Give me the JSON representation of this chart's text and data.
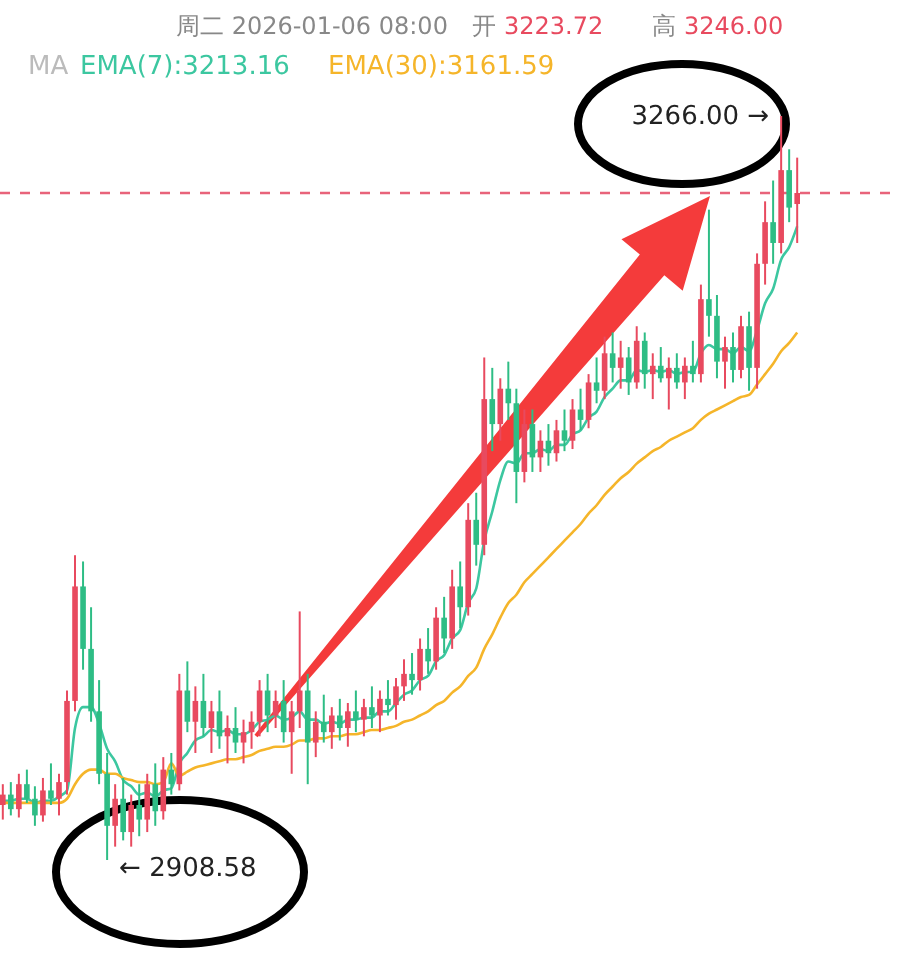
{
  "chart_data": {
    "type": "candlestick",
    "title": "周二 2026-01-06 08:00",
    "annotations": [
      "开 3223.72",
      "高 3246.00",
      "MA",
      "3266.00 →",
      "← 2908.58"
    ],
    "legend": "top left",
    "categories": [
      null,
      null,
      null,
      null,
      null,
      null,
      null,
      null,
      null,
      null,
      null,
      null,
      null,
      null,
      null,
      null,
      null,
      null,
      null,
      null,
      null,
      null,
      null,
      null,
      null,
      null,
      null,
      null,
      null,
      null,
      null,
      null,
      null,
      null,
      null,
      null,
      null,
      null,
      null,
      null,
      null,
      null,
      null,
      null,
      null,
      null,
      null,
      null,
      null,
      null,
      null,
      null,
      null,
      null,
      null,
      null,
      null,
      null,
      null,
      null,
      null,
      null,
      null,
      null,
      null,
      null,
      null,
      null,
      null,
      null,
      null,
      null,
      null,
      null,
      null,
      null,
      null,
      null,
      null,
      null,
      null,
      null,
      null,
      null,
      null,
      null,
      null,
      null,
      null,
      null,
      null,
      null,
      null,
      null,
      null,
      null,
      null,
      null,
      null,
      null
    ],
    "ohlc": [
      [
        2935,
        2945,
        2928,
        2940
      ],
      [
        2940,
        2946,
        2930,
        2933
      ],
      [
        2933,
        2950,
        2929,
        2945
      ],
      [
        2945,
        2952,
        2936,
        2938
      ],
      [
        2938,
        2944,
        2925,
        2930
      ],
      [
        2930,
        2948,
        2927,
        2942
      ],
      [
        2942,
        2955,
        2935,
        2938
      ],
      [
        2938,
        2950,
        2930,
        2946
      ],
      [
        2946,
        2990,
        2940,
        2985
      ],
      [
        2985,
        3055,
        2980,
        3040
      ],
      [
        3040,
        3052,
        3000,
        3010
      ],
      [
        3010,
        3030,
        2975,
        2980
      ],
      [
        2980,
        2995,
        2945,
        2950
      ],
      [
        2950,
        2960,
        2908.58,
        2925
      ],
      [
        2925,
        2945,
        2915,
        2938
      ],
      [
        2938,
        2948,
        2918,
        2922
      ],
      [
        2922,
        2940,
        2915,
        2935
      ],
      [
        2935,
        2945,
        2920,
        2928
      ],
      [
        2928,
        2950,
        2922,
        2945
      ],
      [
        2945,
        2955,
        2925,
        2932
      ],
      [
        2932,
        2958,
        2928,
        2952
      ],
      [
        2952,
        2960,
        2940,
        2945
      ],
      [
        2945,
        2998,
        2942,
        2990
      ],
      [
        2990,
        3004,
        2970,
        2975
      ],
      [
        2975,
        2992,
        2960,
        2985
      ],
      [
        2985,
        2998,
        2968,
        2972
      ],
      [
        2972,
        2985,
        2960,
        2980
      ],
      [
        2980,
        2990,
        2962,
        2968
      ],
      [
        2968,
        2978,
        2955,
        2972
      ],
      [
        2972,
        2982,
        2960,
        2965
      ],
      [
        2965,
        2976,
        2955,
        2970
      ],
      [
        2970,
        2980,
        2962,
        2975
      ],
      [
        2975,
        2995,
        2968,
        2990
      ],
      [
        2990,
        2998,
        2970,
        2978
      ],
      [
        2978,
        2990,
        2972,
        2985
      ],
      [
        2985,
        2995,
        2965,
        2970
      ],
      [
        2970,
        2985,
        2950,
        2980
      ],
      [
        2980,
        3028,
        2972,
        2990
      ],
      [
        2990,
        2998,
        2945,
        2965
      ],
      [
        2965,
        2980,
        2958,
        2975
      ],
      [
        2975,
        2988,
        2965,
        2970
      ],
      [
        2970,
        2982,
        2962,
        2978
      ],
      [
        2978,
        2986,
        2966,
        2972
      ],
      [
        2972,
        2984,
        2963,
        2980
      ],
      [
        2980,
        2990,
        2970,
        2976
      ],
      [
        2976,
        2986,
        2968,
        2982
      ],
      [
        2982,
        2992,
        2972,
        2978
      ],
      [
        2978,
        2990,
        2970,
        2986
      ],
      [
        2986,
        2995,
        2978,
        2983
      ],
      [
        2983,
        2996,
        2976,
        2992
      ],
      [
        2992,
        3005,
        2985,
        2998
      ],
      [
        2998,
        3008,
        2988,
        2995
      ],
      [
        2995,
        3015,
        2990,
        3010
      ],
      [
        3010,
        3020,
        2998,
        3004
      ],
      [
        3004,
        3030,
        3000,
        3025
      ],
      [
        3025,
        3035,
        3008,
        3015
      ],
      [
        3015,
        3048,
        3010,
        3040
      ],
      [
        3040,
        3052,
        3020,
        3030
      ],
      [
        3030,
        3080,
        3026,
        3072
      ],
      [
        3072,
        3085,
        3050,
        3060
      ],
      [
        3060,
        3150,
        3055,
        3130
      ],
      [
        3130,
        3145,
        3105,
        3118
      ],
      [
        3118,
        3140,
        3110,
        3135
      ],
      [
        3135,
        3148,
        3120,
        3128
      ],
      [
        3128,
        3135,
        3080,
        3095
      ],
      [
        3095,
        3125,
        3090,
        3118
      ],
      [
        3118,
        3125,
        3095,
        3102
      ],
      [
        3102,
        3115,
        3095,
        3110
      ],
      [
        3110,
        3118,
        3098,
        3104
      ],
      [
        3104,
        3120,
        3100,
        3115
      ],
      [
        3115,
        3125,
        3105,
        3110
      ],
      [
        3110,
        3130,
        3106,
        3125
      ],
      [
        3125,
        3135,
        3115,
        3120
      ],
      [
        3120,
        3142,
        3116,
        3138
      ],
      [
        3138,
        3150,
        3128,
        3134
      ],
      [
        3134,
        3160,
        3130,
        3152
      ],
      [
        3152,
        3162,
        3138,
        3145
      ],
      [
        3145,
        3158,
        3135,
        3150
      ],
      [
        3150,
        3155,
        3132,
        3138
      ],
      [
        3138,
        3165,
        3135,
        3158
      ],
      [
        3158,
        3162,
        3135,
        3142
      ],
      [
        3142,
        3152,
        3130,
        3146
      ],
      [
        3146,
        3155,
        3138,
        3140
      ],
      [
        3140,
        3150,
        3125,
        3145
      ],
      [
        3145,
        3152,
        3135,
        3138
      ],
      [
        3138,
        3150,
        3130,
        3146
      ],
      [
        3146,
        3158,
        3138,
        3142
      ],
      [
        3142,
        3185,
        3138,
        3178
      ],
      [
        3178,
        3221,
        3160,
        3170
      ],
      [
        3170,
        3180,
        3140,
        3148
      ],
      [
        3148,
        3160,
        3135,
        3155
      ],
      [
        3155,
        3162,
        3138,
        3144
      ],
      [
        3144,
        3170,
        3140,
        3165
      ],
      [
        3165,
        3172,
        3134,
        3145
      ],
      [
        3145,
        3200,
        3135,
        3195
      ],
      [
        3195,
        3225,
        3185,
        3215
      ],
      [
        3215,
        3235,
        3195,
        3205
      ],
      [
        3205,
        3266,
        3200,
        3240
      ],
      [
        3240,
        3250,
        3215,
        3222
      ],
      [
        3223.72,
        3246,
        3205,
        3229
      ]
    ],
    "series": [
      {
        "name": "EMA(7):3213.16",
        "type": "line",
        "color": "#3cc7a0",
        "values": [
          2937,
          2937,
          2938,
          2938,
          2936,
          2937,
          2937,
          2939,
          2942,
          2972,
          2982,
          2982,
          2974,
          2962,
          2956,
          2947,
          2944,
          2940,
          2941,
          2939,
          2942,
          2943,
          2955,
          2960,
          2966,
          2968,
          2971,
          2970,
          2971,
          2969,
          2969,
          2971,
          2975,
          2976,
          2978,
          2976,
          2977,
          2980,
          2976,
          2976,
          2974,
          2975,
          2974,
          2976,
          2976,
          2977,
          2977,
          2980,
          2980,
          2984,
          2988,
          2990,
          2995,
          2997,
          3004,
          3007,
          3015,
          3019,
          3032,
          3039,
          3062,
          3076,
          3091,
          3100,
          3099,
          3104,
          3104,
          3106,
          3105,
          3108,
          3108,
          3113,
          3115,
          3121,
          3124,
          3131,
          3135,
          3139,
          3139,
          3144,
          3143,
          3144,
          3143,
          3144,
          3142,
          3143,
          3143,
          3152,
          3156,
          3154,
          3154,
          3152,
          3155,
          3153,
          3163,
          3176,
          3183,
          3197,
          3203,
          3213
        ]
      },
      {
        "name": "EMA(30):3161.59",
        "type": "line",
        "color": "#f5b52a",
        "values": [
          2936,
          2936,
          2936,
          2936,
          2936,
          2936,
          2936,
          2936,
          2938,
          2945,
          2950,
          2952,
          2952,
          2950,
          2950,
          2948,
          2947,
          2946,
          2946,
          2945,
          2946,
          2955,
          2949,
          2951,
          2953,
          2954,
          2955,
          2956,
          2957,
          2957,
          2958,
          2959,
          2961,
          2962,
          2963,
          2963,
          2964,
          2966,
          2966,
          2967,
          2967,
          2968,
          2968,
          2969,
          2969,
          2970,
          2971,
          2971,
          2972,
          2973,
          2975,
          2976,
          2978,
          2980,
          2983,
          2985,
          2989,
          2992,
          2997,
          3001,
          3010,
          3017,
          3025,
          3032,
          3036,
          3042,
          3046,
          3050,
          3054,
          3058,
          3062,
          3066,
          3070,
          3075,
          3079,
          3084,
          3088,
          3092,
          3095,
          3099,
          3102,
          3105,
          3107,
          3110,
          3112,
          3114,
          3116,
          3120,
          3123,
          3125,
          3127,
          3129,
          3131,
          3132,
          3137,
          3142,
          3147,
          3153,
          3157,
          3162
        ]
      }
    ],
    "ref_lines": [
      {
        "axis": "y",
        "value": 3229,
        "color": "#e8637a",
        "line_style": "dashed"
      }
    ]
  }
}
